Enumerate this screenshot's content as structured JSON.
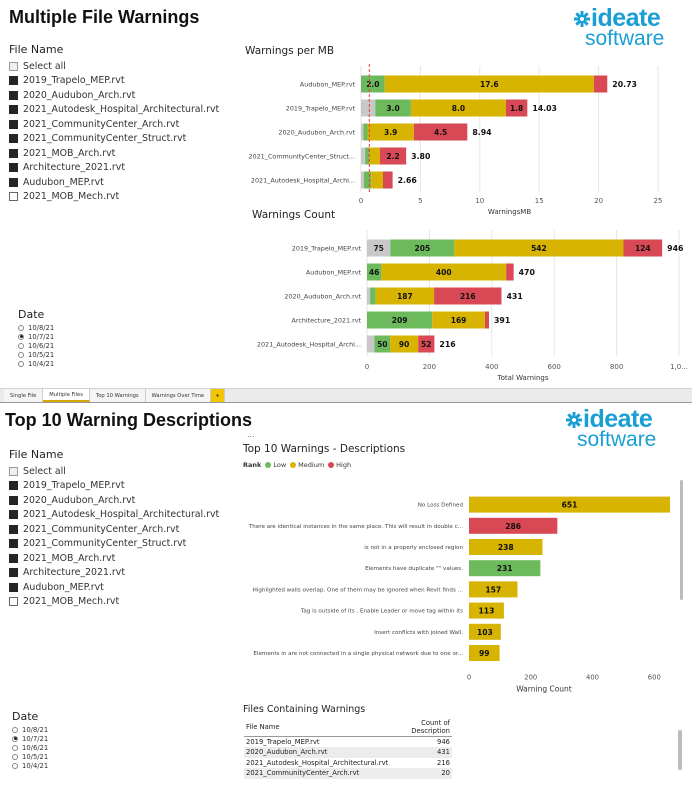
{
  "top": {
    "page_title": "Multiple File Warnings",
    "logo": {
      "word1": "ideate",
      "word2": "software"
    },
    "slicer": {
      "title": "File Name",
      "select_all": "Select all",
      "files": [
        "2019_Trapelo_MEP.rvt",
        "2020_Audubon_Arch.rvt",
        "2021_Autodesk_Hospital_Architectural.rvt",
        "2021_CommunityCenter_Arch.rvt",
        "2021_CommunityCenter_Struct.rvt",
        "2021_MOB_Arch.rvt",
        "Architecture_2021.rvt",
        "Audubon_MEP.rvt",
        "2021_MOB_Mech.rvt"
      ],
      "checked": [
        true,
        true,
        true,
        true,
        true,
        true,
        true,
        true,
        false
      ]
    },
    "date": {
      "title": "Date",
      "options": [
        "10/8/21",
        "10/7/21",
        "10/6/21",
        "10/5/21",
        "10/4/21"
      ],
      "selected": 1
    }
  },
  "tabs": [
    {
      "label": "Single File"
    },
    {
      "label": "Multiple Files"
    },
    {
      "label": "Top 10 Warnings"
    },
    {
      "label": "Warnings Over Time"
    },
    {
      "label": "+"
    }
  ],
  "bottom": {
    "page_title": "Top 10 Warning Descriptions",
    "logo": {
      "word1": "ideate",
      "word2": "software"
    },
    "ellipsis": "...",
    "slicer": {
      "title": "File Name",
      "select_all": "Select all",
      "files": [
        "2019_Trapelo_MEP.rvt",
        "2020_Audubon_Arch.rvt",
        "2021_Autodesk_Hospital_Architectural.rvt",
        "2021_CommunityCenter_Arch.rvt",
        "2021_CommunityCenter_Struct.rvt",
        "2021_MOB_Arch.rvt",
        "Architecture_2021.rvt",
        "Audubon_MEP.rvt",
        "2021_MOB_Mech.rvt"
      ],
      "checked": [
        true,
        true,
        true,
        true,
        true,
        true,
        true,
        true,
        false
      ]
    },
    "date": {
      "title": "Date",
      "options": [
        "10/8/21",
        "10/7/21",
        "10/6/21",
        "10/5/21",
        "10/4/21"
      ],
      "selected": 1
    },
    "legend": {
      "label": "Rank",
      "items": [
        "Low",
        "Medium",
        "High"
      ]
    },
    "files_table": {
      "title": "Files Containing Warnings",
      "headers": [
        "File Name",
        "Count of Description"
      ],
      "rows": [
        [
          "2019_Trapelo_MEP.rvt",
          "946"
        ],
        [
          "2020_Audubon_Arch.rvt",
          "431"
        ],
        [
          "2021_Autodesk_Hospital_Architectural.rvt",
          "216"
        ],
        [
          "2021_CommunityCenter_Arch.rvt",
          "20"
        ]
      ]
    }
  },
  "colors": {
    "gray": "#c8c8c8",
    "low": "#6cba5c",
    "medium": "#d7b402",
    "high": "#d94955",
    "red_line": "#e04040",
    "accent": "#1a9fd4",
    "tab_accent": "#f2c500"
  },
  "chart_data": [
    {
      "type": "bar",
      "orientation": "horizontal-stacked",
      "title": "Warnings per MB",
      "xlabel": "WarningsMB",
      "xlim": [
        0,
        25
      ],
      "ticks": [
        0,
        5,
        10,
        15,
        20,
        25
      ],
      "reference_line": 0.7,
      "categories": [
        "Audubon_MEP.rvt",
        "2019_Trapelo_MEP.rvt",
        "2020_Audubon_Arch.rvt",
        "2021_CommunityCenter_Struct...",
        "2021_Autodesk_Hospital_Archi..."
      ],
      "totals": [
        "20.73",
        "14.03",
        "8.94",
        "3.80",
        "2.66"
      ],
      "series": [
        {
          "color": "gray",
          "values": [
            0,
            1.2,
            0.2,
            0.35,
            0.25
          ],
          "labels": [
            "",
            "",
            "",
            "",
            ""
          ]
        },
        {
          "color": "low",
          "values": [
            2.0,
            3.0,
            0.35,
            0.35,
            0.6
          ],
          "labels": [
            "2.0",
            "3.0",
            "",
            "",
            ""
          ]
        },
        {
          "color": "medium",
          "values": [
            17.6,
            8.0,
            3.9,
            0.9,
            1.0
          ],
          "labels": [
            "17.6",
            "8.0",
            "3.9",
            "",
            ""
          ]
        },
        {
          "color": "high",
          "values": [
            1.13,
            1.8,
            4.5,
            2.2,
            0.81
          ],
          "labels": [
            "",
            "1.8",
            "4.5",
            "2.2",
            ""
          ]
        }
      ]
    },
    {
      "type": "bar",
      "orientation": "horizontal-stacked",
      "title": "Warnings Count",
      "xlabel": "Total Warnings",
      "xlim": [
        0,
        1000
      ],
      "ticks": [
        "0",
        "200",
        "400",
        "600",
        "800",
        "1,0..."
      ],
      "tick_values": [
        0,
        200,
        400,
        600,
        800,
        1000
      ],
      "categories": [
        "2019_Trapelo_MEP.rvt",
        "Audubon_MEP.rvt",
        "2020_Audubon_Arch.rvt",
        "Architecture_2021.rvt",
        "2021_Autodesk_Hospital_Archi..."
      ],
      "totals": [
        "946",
        "470",
        "431",
        "391",
        "216"
      ],
      "series": [
        {
          "color": "gray",
          "values": [
            75,
            0,
            10,
            0,
            24
          ],
          "labels": [
            "75",
            "",
            "",
            "",
            ""
          ]
        },
        {
          "color": "low",
          "values": [
            205,
            46,
            18,
            209,
            50
          ],
          "labels": [
            "205",
            "46",
            "",
            "209",
            "50"
          ]
        },
        {
          "color": "medium",
          "values": [
            542,
            400,
            187,
            169,
            90
          ],
          "labels": [
            "542",
            "400",
            "187",
            "169",
            "90"
          ]
        },
        {
          "color": "high",
          "values": [
            124,
            24,
            216,
            13,
            52
          ],
          "labels": [
            "124",
            "",
            "216",
            "",
            "52"
          ]
        }
      ]
    },
    {
      "type": "bar",
      "orientation": "horizontal",
      "title": "Top 10 Warnings - Descriptions",
      "xlabel": "Warning Count",
      "xlim": [
        0,
        680
      ],
      "ticks": [
        0,
        200,
        400,
        600
      ],
      "categories": [
        "No Loss Defined",
        "There are identical instances in the same place. This will result in double c...",
        "is not in a properly enclosed region",
        "Elements have duplicate \"\" values.",
        "Highlighted walls overlap. One of them may be ignored when Revit finds ...",
        "Tag is outside of its . Enable Leader or move tag within its",
        "Insert conflicts with joined Wall.",
        "Elements in are not connected in a single physical network due to one or..."
      ],
      "values": [
        651,
        286,
        238,
        231,
        157,
        113,
        103,
        99
      ],
      "ranks": [
        "medium",
        "high",
        "medium",
        "low",
        "medium",
        "medium",
        "medium",
        "medium"
      ]
    }
  ]
}
